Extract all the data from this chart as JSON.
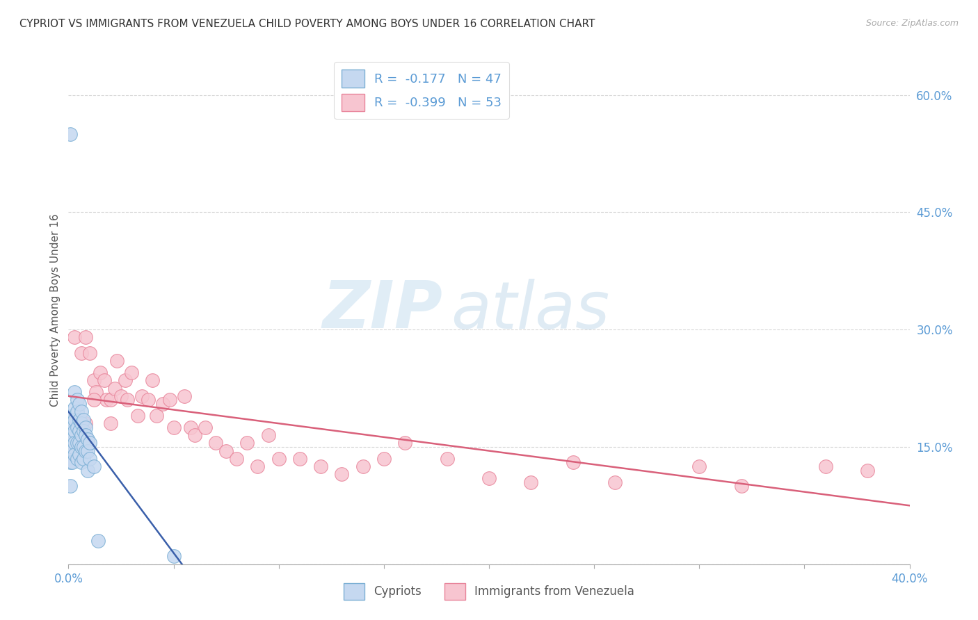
{
  "title": "CYPRIOT VS IMMIGRANTS FROM VENEZUELA CHILD POVERTY AMONG BOYS UNDER 16 CORRELATION CHART",
  "source": "Source: ZipAtlas.com",
  "ylabel": "Child Poverty Among Boys Under 16",
  "x_min": 0.0,
  "x_max": 0.4,
  "y_min": 0.0,
  "y_max": 0.65,
  "x_ticks": [
    0.0,
    0.05,
    0.1,
    0.15,
    0.2,
    0.25,
    0.3,
    0.35,
    0.4
  ],
  "y_ticks_right": [
    0.6,
    0.45,
    0.3,
    0.15
  ],
  "y_tick_labels_right": [
    "60.0%",
    "45.0%",
    "30.0%",
    "15.0%"
  ],
  "watermark_zip": "ZIP",
  "watermark_atlas": "atlas",
  "background_color": "#ffffff",
  "grid_color": "#cccccc",
  "cypriot_color": "#c5d8f0",
  "cypriot_edge": "#7bafd4",
  "venezuela_color": "#f7c5d0",
  "venezuela_edge": "#e8849a",
  "trend_cypriot_color": "#3a5faa",
  "trend_venezuela_color": "#d9607a",
  "legend1_label1": "R =  -0.177   N = 47",
  "legend1_label2": "R =  -0.399   N = 53",
  "legend2_label1": "Cypriots",
  "legend2_label2": "Immigrants from Venezuela",
  "cypriot_x": [
    0.001,
    0.001,
    0.001,
    0.001,
    0.001,
    0.002,
    0.002,
    0.002,
    0.002,
    0.002,
    0.003,
    0.003,
    0.003,
    0.003,
    0.003,
    0.003,
    0.004,
    0.004,
    0.004,
    0.004,
    0.004,
    0.005,
    0.005,
    0.005,
    0.005,
    0.005,
    0.006,
    0.006,
    0.006,
    0.006,
    0.006,
    0.007,
    0.007,
    0.007,
    0.007,
    0.008,
    0.008,
    0.008,
    0.009,
    0.009,
    0.009,
    0.01,
    0.01,
    0.012,
    0.014,
    0.05,
    0.001
  ],
  "cypriot_y": [
    0.17,
    0.16,
    0.145,
    0.13,
    0.1,
    0.19,
    0.18,
    0.165,
    0.15,
    0.13,
    0.22,
    0.2,
    0.185,
    0.17,
    0.155,
    0.14,
    0.21,
    0.195,
    0.175,
    0.155,
    0.135,
    0.205,
    0.185,
    0.17,
    0.155,
    0.14,
    0.195,
    0.18,
    0.165,
    0.15,
    0.13,
    0.185,
    0.17,
    0.15,
    0.135,
    0.175,
    0.165,
    0.145,
    0.16,
    0.145,
    0.12,
    0.155,
    0.135,
    0.125,
    0.03,
    0.01,
    0.55
  ],
  "venezuela_x": [
    0.003,
    0.006,
    0.008,
    0.01,
    0.012,
    0.013,
    0.015,
    0.017,
    0.018,
    0.02,
    0.022,
    0.023,
    0.025,
    0.027,
    0.028,
    0.03,
    0.033,
    0.035,
    0.038,
    0.04,
    0.042,
    0.045,
    0.048,
    0.05,
    0.055,
    0.058,
    0.06,
    0.065,
    0.07,
    0.075,
    0.08,
    0.085,
    0.09,
    0.095,
    0.1,
    0.11,
    0.12,
    0.13,
    0.14,
    0.15,
    0.16,
    0.18,
    0.2,
    0.22,
    0.24,
    0.26,
    0.3,
    0.32,
    0.36,
    0.38,
    0.008,
    0.012,
    0.02
  ],
  "venezuela_y": [
    0.29,
    0.27,
    0.29,
    0.27,
    0.235,
    0.22,
    0.245,
    0.235,
    0.21,
    0.21,
    0.225,
    0.26,
    0.215,
    0.235,
    0.21,
    0.245,
    0.19,
    0.215,
    0.21,
    0.235,
    0.19,
    0.205,
    0.21,
    0.175,
    0.215,
    0.175,
    0.165,
    0.175,
    0.155,
    0.145,
    0.135,
    0.155,
    0.125,
    0.165,
    0.135,
    0.135,
    0.125,
    0.115,
    0.125,
    0.135,
    0.155,
    0.135,
    0.11,
    0.105,
    0.13,
    0.105,
    0.125,
    0.1,
    0.125,
    0.12,
    0.18,
    0.21,
    0.18
  ],
  "trend_cy_x0": 0.0,
  "trend_cy_x1": 0.054,
  "trend_cy_y0": 0.195,
  "trend_cy_y1": 0.0,
  "trend_ve_x0": 0.0,
  "trend_ve_x1": 0.4,
  "trend_ve_y0": 0.215,
  "trend_ve_y1": 0.075
}
